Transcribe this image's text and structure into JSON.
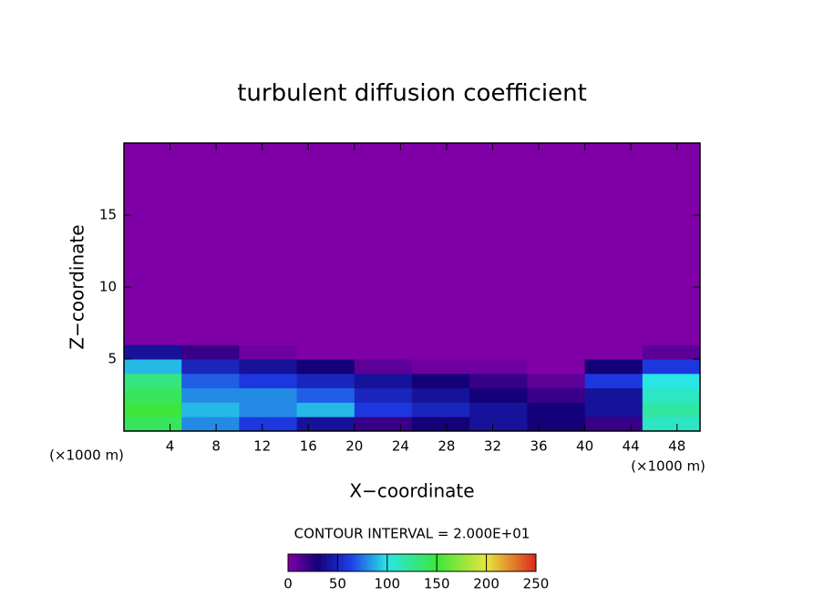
{
  "chart_data": {
    "type": "contour",
    "title": "turbulent diffusion coefficient",
    "x_label": "X−coordinate",
    "y_label": "Z−coordinate",
    "x_unit_label": "(×1000 m)",
    "x_unit_label_right": "(×1000 m)",
    "contour_interval_label": "CONTOUR INTERVAL = 2.000E+01",
    "xlim": [
      0,
      50
    ],
    "ylim": [
      0,
      20
    ],
    "xticks": [
      4,
      8,
      12,
      16,
      20,
      24,
      28,
      32,
      36,
      40,
      44,
      48
    ],
    "yticks": [
      5,
      10,
      15
    ],
    "x_edges": [
      0,
      5,
      10,
      15,
      20,
      25,
      30,
      35,
      40,
      45,
      50
    ],
    "y_edges": [
      0,
      1,
      2,
      3,
      4,
      5,
      6,
      20
    ],
    "z": [
      [
        140,
        80,
        60,
        40,
        20,
        30,
        40,
        30,
        20,
        110
      ],
      [
        150,
        90,
        80,
        90,
        60,
        50,
        40,
        30,
        40,
        120
      ],
      [
        140,
        80,
        80,
        70,
        50,
        40,
        30,
        20,
        40,
        110
      ],
      [
        130,
        70,
        60,
        50,
        40,
        30,
        20,
        10,
        60,
        100
      ],
      [
        90,
        50,
        40,
        30,
        10,
        5,
        5,
        0,
        30,
        60
      ],
      [
        40,
        20,
        5,
        0,
        0,
        0,
        0,
        0,
        0,
        10
      ],
      [
        0,
        0,
        0,
        0,
        0,
        0,
        0,
        0,
        0,
        0
      ]
    ],
    "colorbar_lim": [
      0,
      250
    ],
    "colorbar_ticks": [
      0,
      50,
      100,
      150,
      200,
      250
    ]
  }
}
